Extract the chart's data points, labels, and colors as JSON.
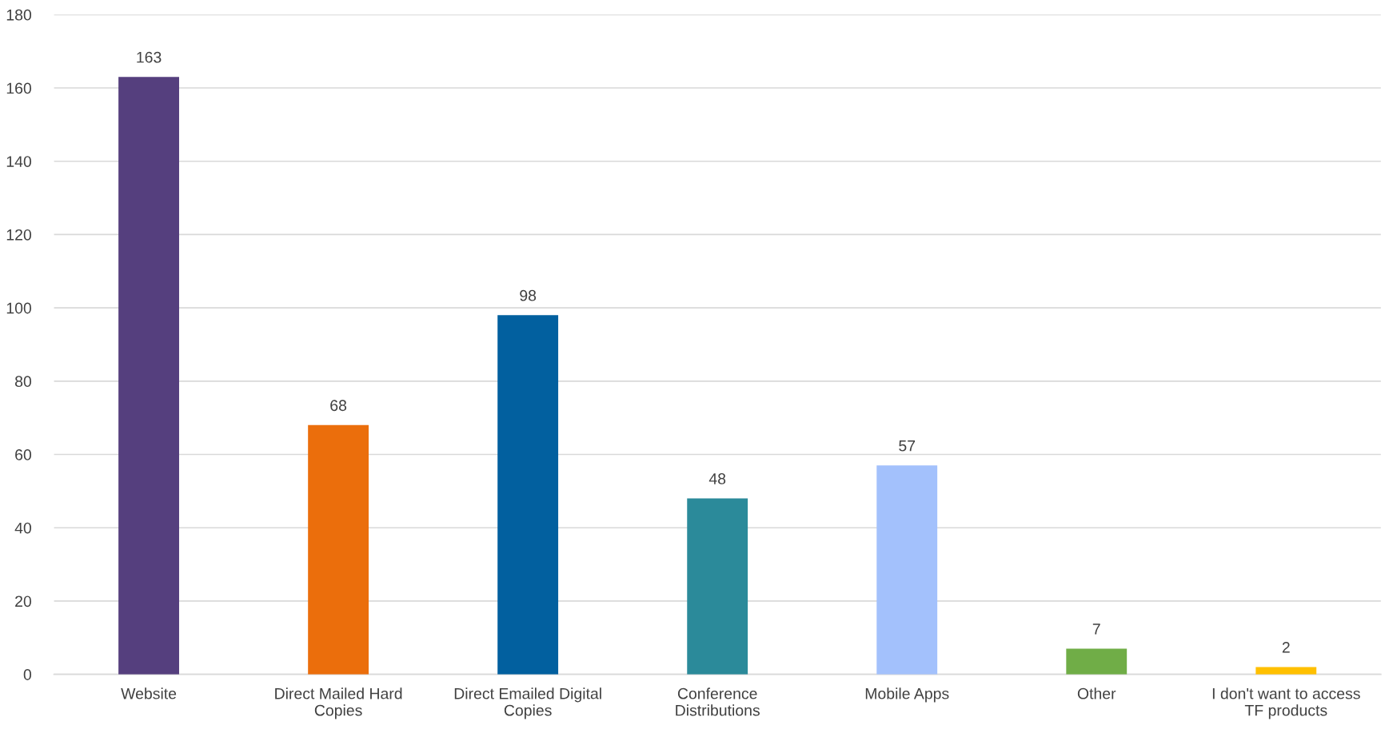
{
  "chart_data": {
    "type": "bar",
    "categories": [
      "Website",
      "Direct Mailed Hard\nCopies",
      "Direct Emailed Digital\nCopies",
      "Conference\nDistributions",
      "Mobile Apps",
      "Other",
      "I don't want to access\nTF products"
    ],
    "values": [
      163,
      68,
      98,
      48,
      57,
      7,
      2
    ],
    "colors": [
      "#553f7e",
      "#eb6e0c",
      "#02609f",
      "#2b8a9a",
      "#a3c1fc",
      "#70ad47",
      "#ffc000"
    ],
    "ylim": [
      0,
      180
    ],
    "yticks": [
      0,
      20,
      40,
      60,
      80,
      100,
      120,
      140,
      160,
      180
    ],
    "grid": "y",
    "data_labels": true,
    "legend": false
  }
}
